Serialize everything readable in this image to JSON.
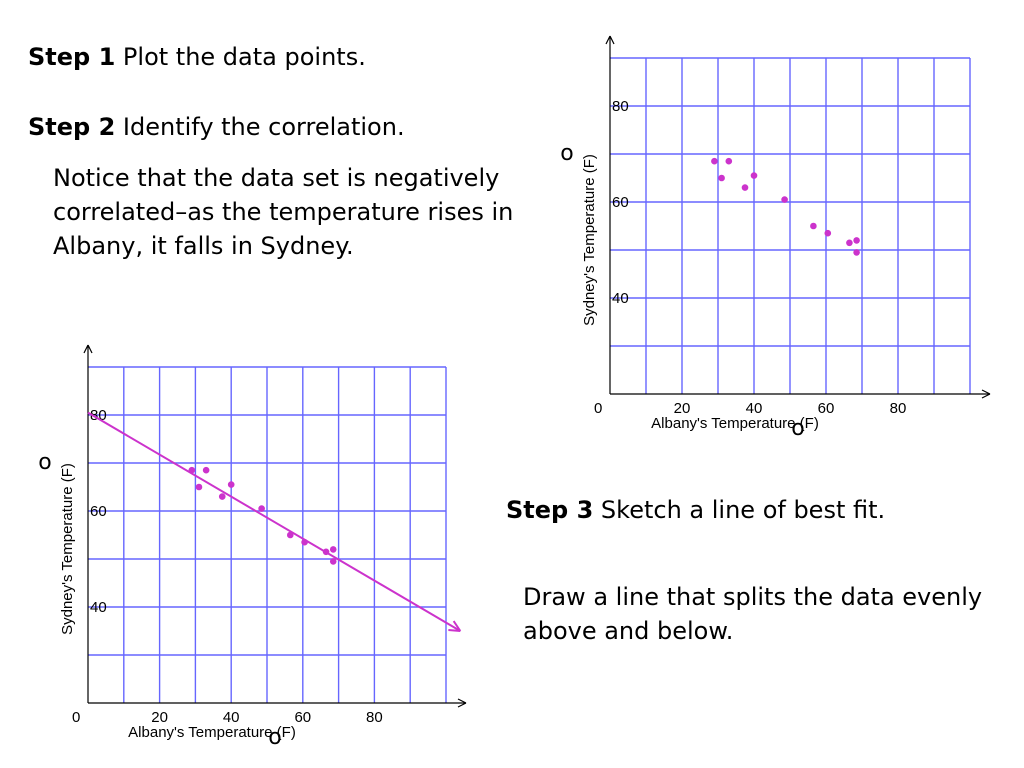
{
  "steps": {
    "step1": {
      "label": "Step 1",
      "text": "Plot the data points."
    },
    "step2": {
      "label": "Step 2",
      "text": "Identify the correlation."
    },
    "step3": {
      "label": "Step 3",
      "text": "Sketch a line of best fit."
    }
  },
  "paragraphs": {
    "notice": "Notice that the data set is negatively correlated–as the temperature rises in Albany, it falls in Sydney.",
    "draw": "Draw a line that splits the data evenly above and below."
  },
  "chart_data": [
    {
      "type": "scatter",
      "xlabel": "Albany's Temperature (F)",
      "ylabel": "Sydney's Temperature (F)",
      "degree_symbol": "o",
      "xlim": [
        0,
        100
      ],
      "ylim": [
        20,
        90
      ],
      "xticks": [
        0,
        20,
        40,
        60,
        80
      ],
      "yticks": [
        40,
        60,
        80
      ],
      "grid": true,
      "point_color": "#cc33cc",
      "grid_color": "#6666ff",
      "points": [
        [
          29,
          68.5
        ],
        [
          31,
          65
        ],
        [
          33,
          68.5
        ],
        [
          37.5,
          63
        ],
        [
          40,
          65.5
        ],
        [
          48.5,
          60.5
        ],
        [
          56.5,
          55
        ],
        [
          60.5,
          53.5
        ],
        [
          66.5,
          51.5
        ],
        [
          68.5,
          52
        ],
        [
          68.5,
          49.5
        ]
      ]
    },
    {
      "type": "scatter",
      "xlabel": "Albany's Temperature (F)",
      "ylabel": "Sydney's Temperature (F)",
      "degree_symbol": "o",
      "xlim": [
        0,
        100
      ],
      "ylim": [
        20,
        90
      ],
      "xticks": [
        0,
        20,
        40,
        60,
        80
      ],
      "yticks": [
        40,
        60,
        80
      ],
      "grid": true,
      "point_color": "#cc33cc",
      "grid_color": "#6666ff",
      "line_color": "#cc33cc",
      "points": [
        [
          29,
          68.5
        ],
        [
          31,
          65
        ],
        [
          33,
          68.5
        ],
        [
          37.5,
          63
        ],
        [
          40,
          65.5
        ],
        [
          48.5,
          60.5
        ],
        [
          56.5,
          55
        ],
        [
          60.5,
          53.5
        ],
        [
          66.5,
          51.5
        ],
        [
          68.5,
          52
        ],
        [
          68.5,
          49.5
        ]
      ],
      "best_fit_line": [
        [
          0,
          80.5
        ],
        [
          104,
          35
        ]
      ]
    }
  ]
}
